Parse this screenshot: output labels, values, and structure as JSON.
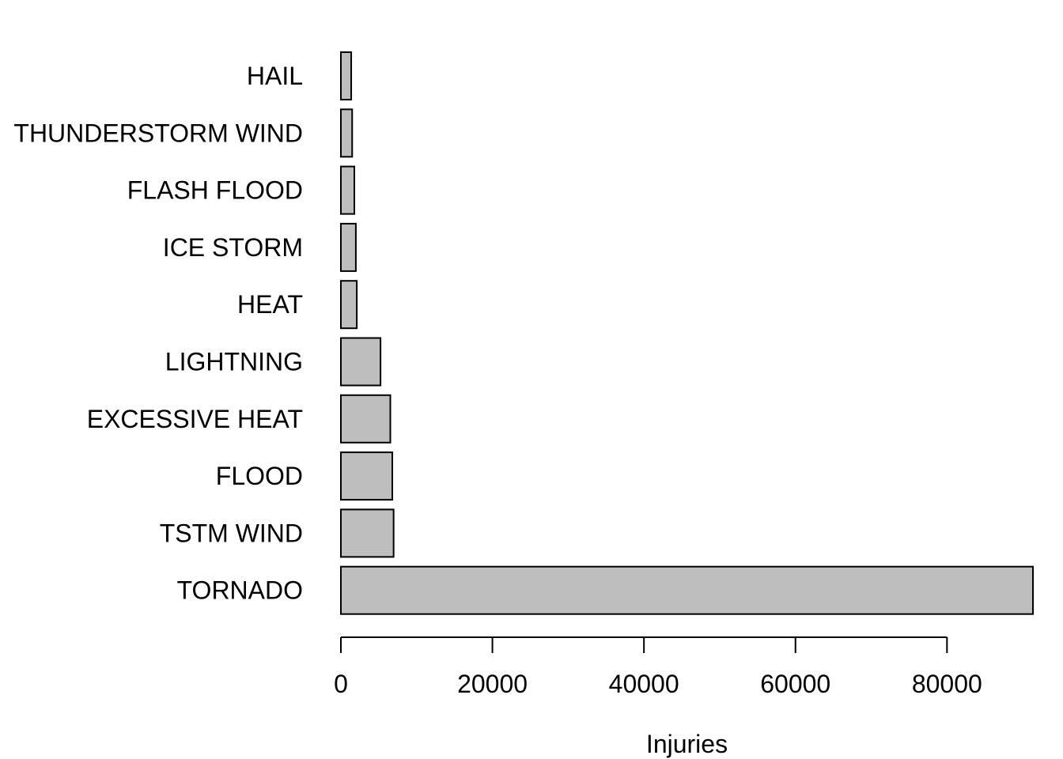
{
  "chart_data": {
    "type": "bar",
    "orientation": "horizontal",
    "categories": [
      "TORNADO",
      "TSTM WIND",
      "FLOOD",
      "EXCESSIVE HEAT",
      "LIGHTNING",
      "HEAT",
      "ICE STORM",
      "FLASH FLOOD",
      "THUNDERSTORM WIND",
      "HAIL"
    ],
    "values": [
      91346,
      6957,
      6789,
      6525,
      5230,
      2100,
      1975,
      1777,
      1488,
      1361
    ],
    "title": "",
    "xlabel": "Injuries",
    "ylabel": "",
    "xlim": [
      0,
      91346
    ],
    "xticks": [
      0,
      20000,
      40000,
      60000,
      80000
    ],
    "xtick_labels": [
      "0",
      "20000",
      "40000",
      "60000",
      "80000"
    ],
    "grid": false,
    "bar_color": "#bebebe",
    "outline_color": "#000000"
  }
}
